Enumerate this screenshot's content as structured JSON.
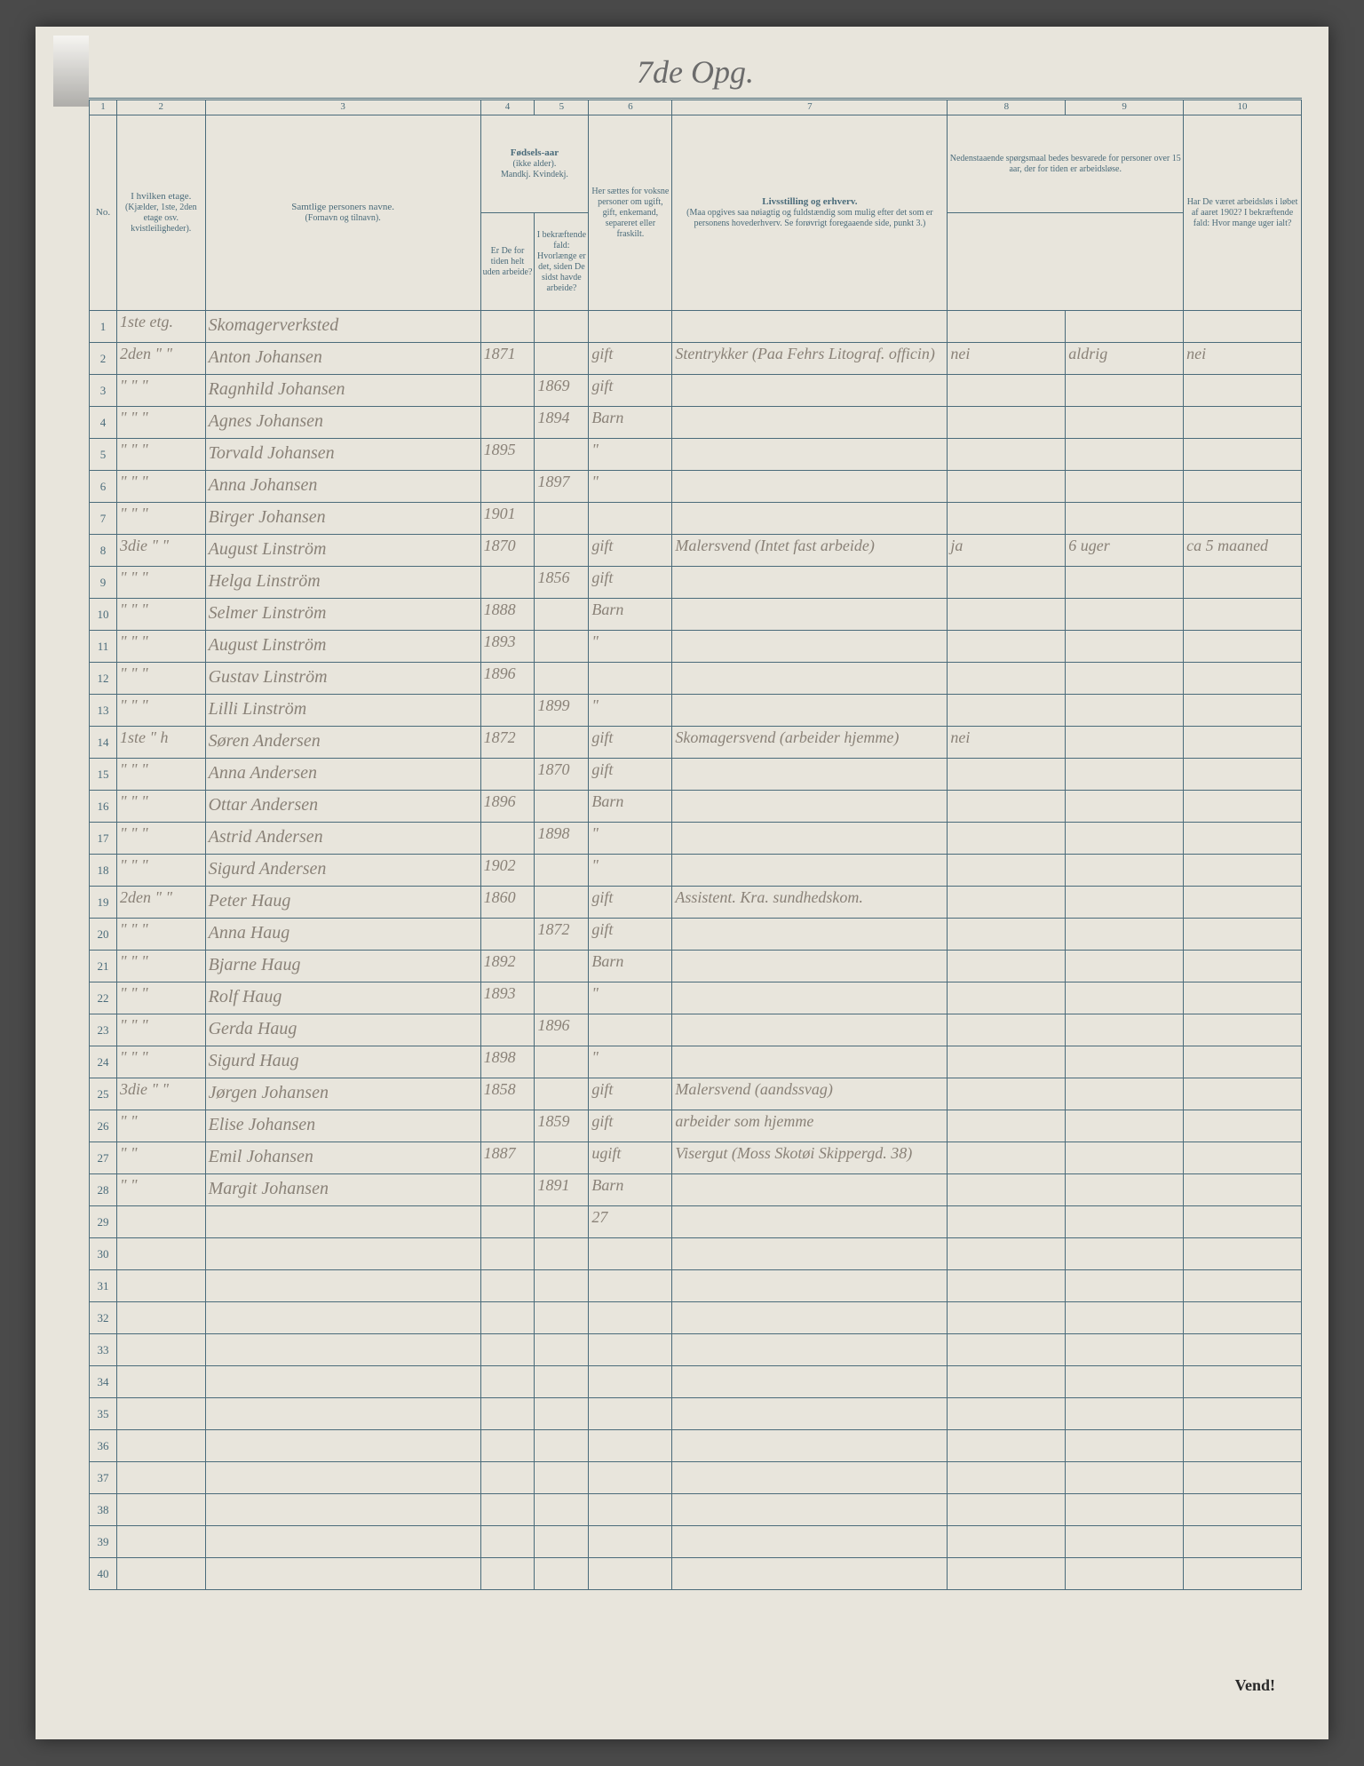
{
  "page_title": "7de Opg.",
  "columns": {
    "num1": "1",
    "num2": "2",
    "num3": "3",
    "num4": "4",
    "num5": "5",
    "num6": "6",
    "num7": "7",
    "num8": "8",
    "num9": "9",
    "num10": "10",
    "h_no": "No.",
    "h_etage": "I hvilken etage.",
    "h_etage_sub": "(Kjælder, 1ste, 2den etage osv. kvistleiligheder).",
    "h_navn": "Samtlige personers navne.",
    "h_navn_sub": "(Fornavn og tilnavn).",
    "h_fodsel": "Fødsels-aar",
    "h_fodsel_sub": "(ikke alder).",
    "h_fodsel_mk": "Mandkj. Kvindekj.",
    "h_status": "Her sættes for voksne personer om ugift, gift, enkemand, separeret eller fraskilt.",
    "h_erhverv": "Livsstilling og erhverv.",
    "h_erhverv_sub": "(Maa opgives saa nøiagtig og fuldstændig som mulig efter det som er personens hovederhverv. Se forøvrigt foregaaende side, punkt 3.)",
    "h_89_top": "Nedenstaaende spørgsmaal bedes besvarede for personer over 15 aar, der for tiden er arbeidsløse.",
    "h_8": "Er De for tiden helt uden arbeide?",
    "h_9": "I bekræftende fald: Hvorlænge er det, siden De sidst havde arbeide?",
    "h_10": "Har De været arbeidsløs i løbet af aaret 1902? I bekræftende fald: Hvor mange uger ialt?"
  },
  "rows": [
    {
      "n": "1",
      "etage": "1ste etg.",
      "navn": "Skomagerverksted",
      "m": "",
      "k": "",
      "s": "",
      "e": "",
      "q8": "",
      "q9": "",
      "q10": ""
    },
    {
      "n": "2",
      "etage": "2den \" \"",
      "navn": "Anton Johansen",
      "m": "1871",
      "k": "",
      "s": "gift",
      "e": "Stentrykker (Paa Fehrs Litograf. officin)",
      "q8": "nei",
      "q9": "aldrig",
      "q10": "nei"
    },
    {
      "n": "3",
      "etage": "\" \" \"",
      "navn": "Ragnhild Johansen",
      "m": "",
      "k": "1869",
      "s": "gift",
      "e": "",
      "q8": "",
      "q9": "",
      "q10": ""
    },
    {
      "n": "4",
      "etage": "\" \" \"",
      "navn": "Agnes Johansen",
      "m": "",
      "k": "1894",
      "s": "Barn",
      "e": "",
      "q8": "",
      "q9": "",
      "q10": ""
    },
    {
      "n": "5",
      "etage": "\" \" \"",
      "navn": "Torvald Johansen",
      "m": "1895",
      "k": "",
      "s": "\"",
      "e": "",
      "q8": "",
      "q9": "",
      "q10": ""
    },
    {
      "n": "6",
      "etage": "\" \" \"",
      "navn": "Anna Johansen",
      "m": "",
      "k": "1897",
      "s": "\"",
      "e": "",
      "q8": "",
      "q9": "",
      "q10": ""
    },
    {
      "n": "7",
      "etage": "\" \" \"",
      "navn": "Birger Johansen",
      "m": "1901",
      "k": "",
      "s": "",
      "e": "",
      "q8": "",
      "q9": "",
      "q10": ""
    },
    {
      "n": "8",
      "etage": "3die \" \"",
      "navn": "August Linström",
      "m": "1870",
      "k": "",
      "s": "gift",
      "e": "Malersvend (Intet fast arbeide)",
      "q8": "ja",
      "q9": "6 uger",
      "q10": "ca 5 maaned"
    },
    {
      "n": "9",
      "etage": "\" \" \"",
      "navn": "Helga Linström",
      "m": "",
      "k": "1856",
      "s": "gift",
      "e": "",
      "q8": "",
      "q9": "",
      "q10": ""
    },
    {
      "n": "10",
      "etage": "\" \" \"",
      "navn": "Selmer Linström",
      "m": "1888",
      "k": "",
      "s": "Barn",
      "e": "",
      "q8": "",
      "q9": "",
      "q10": ""
    },
    {
      "n": "11",
      "etage": "\" \" \"",
      "navn": "August Linström",
      "m": "1893",
      "k": "",
      "s": "\"",
      "e": "",
      "q8": "",
      "q9": "",
      "q10": ""
    },
    {
      "n": "12",
      "etage": "\" \" \"",
      "navn": "Gustav Linström",
      "m": "1896",
      "k": "",
      "s": "",
      "e": "",
      "q8": "",
      "q9": "",
      "q10": ""
    },
    {
      "n": "13",
      "etage": "\" \" \"",
      "navn": "Lilli Linström",
      "m": "",
      "k": "1899",
      "s": "\"",
      "e": "",
      "q8": "",
      "q9": "",
      "q10": ""
    },
    {
      "n": "14",
      "etage": "1ste \" h",
      "navn": "Søren Andersen",
      "m": "1872",
      "k": "",
      "s": "gift",
      "e": "Skomagersvend (arbeider hjemme)",
      "q8": "nei",
      "q9": "",
      "q10": ""
    },
    {
      "n": "15",
      "etage": "\" \" \"",
      "navn": "Anna Andersen",
      "m": "",
      "k": "1870",
      "s": "gift",
      "e": "",
      "q8": "",
      "q9": "",
      "q10": ""
    },
    {
      "n": "16",
      "etage": "\" \" \"",
      "navn": "Ottar Andersen",
      "m": "1896",
      "k": "",
      "s": "Barn",
      "e": "",
      "q8": "",
      "q9": "",
      "q10": ""
    },
    {
      "n": "17",
      "etage": "\" \" \"",
      "navn": "Astrid Andersen",
      "m": "",
      "k": "1898",
      "s": "\"",
      "e": "",
      "q8": "",
      "q9": "",
      "q10": ""
    },
    {
      "n": "18",
      "etage": "\" \" \"",
      "navn": "Sigurd Andersen",
      "m": "1902",
      "k": "",
      "s": "\"",
      "e": "",
      "q8": "",
      "q9": "",
      "q10": ""
    },
    {
      "n": "19",
      "etage": "2den \" \"",
      "navn": "Peter Haug",
      "m": "1860",
      "k": "",
      "s": "gift",
      "e": "Assistent. Kra. sundhedskom.",
      "q8": "",
      "q9": "",
      "q10": ""
    },
    {
      "n": "20",
      "etage": "\" \" \"",
      "navn": "Anna Haug",
      "m": "",
      "k": "1872",
      "s": "gift",
      "e": "",
      "q8": "",
      "q9": "",
      "q10": ""
    },
    {
      "n": "21",
      "etage": "\" \" \"",
      "navn": "Bjarne Haug",
      "m": "1892",
      "k": "",
      "s": "Barn",
      "e": "",
      "q8": "",
      "q9": "",
      "q10": ""
    },
    {
      "n": "22",
      "etage": "\" \" \"",
      "navn": "Rolf Haug",
      "m": "1893",
      "k": "",
      "s": "\"",
      "e": "",
      "q8": "",
      "q9": "",
      "q10": ""
    },
    {
      "n": "23",
      "etage": "\" \" \"",
      "navn": "Gerda Haug",
      "m": "",
      "k": "1896",
      "s": "",
      "e": "",
      "q8": "",
      "q9": "",
      "q10": ""
    },
    {
      "n": "24",
      "etage": "\" \" \"",
      "navn": "Sigurd Haug",
      "m": "1898",
      "k": "",
      "s": "\"",
      "e": "",
      "q8": "",
      "q9": "",
      "q10": ""
    },
    {
      "n": "25",
      "etage": "3die \" \"",
      "navn": "Jørgen Johansen",
      "m": "1858",
      "k": "",
      "s": "gift",
      "e": "Malersvend (aandssvag)",
      "q8": "",
      "q9": "",
      "q10": ""
    },
    {
      "n": "26",
      "etage": "\" \"",
      "navn": "Elise Johansen",
      "m": "",
      "k": "1859",
      "s": "gift",
      "e": "arbeider som hjemme",
      "q8": "",
      "q9": "",
      "q10": ""
    },
    {
      "n": "27",
      "etage": "\" \"",
      "navn": "Emil Johansen",
      "m": "1887",
      "k": "",
      "s": "ugift",
      "e": "Visergut (Moss Skotøi Skippergd. 38)",
      "q8": "",
      "q9": "",
      "q10": ""
    },
    {
      "n": "28",
      "etage": "\" \"",
      "navn": "Margit Johansen",
      "m": "",
      "k": "1891",
      "s": "Barn",
      "e": "",
      "q8": "",
      "q9": "",
      "q10": ""
    },
    {
      "n": "29",
      "etage": "",
      "navn": "",
      "m": "",
      "k": "",
      "s": "27",
      "e": "",
      "q8": "",
      "q9": "",
      "q10": ""
    },
    {
      "n": "30",
      "etage": "",
      "navn": "",
      "m": "",
      "k": "",
      "s": "",
      "e": "",
      "q8": "",
      "q9": "",
      "q10": ""
    },
    {
      "n": "31",
      "etage": "",
      "navn": "",
      "m": "",
      "k": "",
      "s": "",
      "e": "",
      "q8": "",
      "q9": "",
      "q10": ""
    },
    {
      "n": "32",
      "etage": "",
      "navn": "",
      "m": "",
      "k": "",
      "s": "",
      "e": "",
      "q8": "",
      "q9": "",
      "q10": ""
    },
    {
      "n": "33",
      "etage": "",
      "navn": "",
      "m": "",
      "k": "",
      "s": "",
      "e": "",
      "q8": "",
      "q9": "",
      "q10": ""
    },
    {
      "n": "34",
      "etage": "",
      "navn": "",
      "m": "",
      "k": "",
      "s": "",
      "e": "",
      "q8": "",
      "q9": "",
      "q10": ""
    },
    {
      "n": "35",
      "etage": "",
      "navn": "",
      "m": "",
      "k": "",
      "s": "",
      "e": "",
      "q8": "",
      "q9": "",
      "q10": ""
    },
    {
      "n": "36",
      "etage": "",
      "navn": "",
      "m": "",
      "k": "",
      "s": "",
      "e": "",
      "q8": "",
      "q9": "",
      "q10": ""
    },
    {
      "n": "37",
      "etage": "",
      "navn": "",
      "m": "",
      "k": "",
      "s": "",
      "e": "",
      "q8": "",
      "q9": "",
      "q10": ""
    },
    {
      "n": "38",
      "etage": "",
      "navn": "",
      "m": "",
      "k": "",
      "s": "",
      "e": "",
      "q8": "",
      "q9": "",
      "q10": ""
    },
    {
      "n": "39",
      "etage": "",
      "navn": "",
      "m": "",
      "k": "",
      "s": "",
      "e": "",
      "q8": "",
      "q9": "",
      "q10": ""
    },
    {
      "n": "40",
      "etage": "",
      "navn": "",
      "m": "",
      "k": "",
      "s": "",
      "e": "",
      "q8": "",
      "q9": "",
      "q10": ""
    }
  ],
  "footer": "Vend!"
}
